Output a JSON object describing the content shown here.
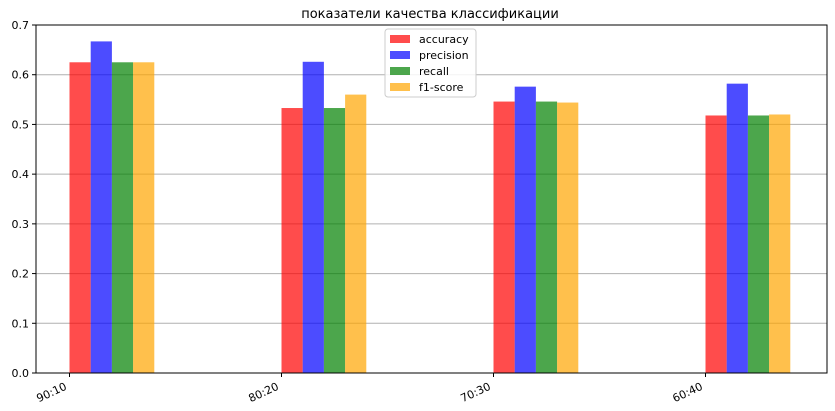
{
  "chart_data": {
    "type": "bar",
    "title": "показатели качества классификации",
    "xlabel": "",
    "ylabel": "",
    "categories": [
      "90:10",
      "80:20",
      "70:30",
      "60:40"
    ],
    "ylim": [
      0,
      0.7
    ],
    "yticks": [
      "0.0",
      "0.1",
      "0.2",
      "0.3",
      "0.4",
      "0.5",
      "0.6",
      "0.7"
    ],
    "grid": "horizontal",
    "legend_position": "top-center",
    "series": [
      {
        "name": "accuracy",
        "color": "#ff0000",
        "values": [
          0.625,
          0.533,
          0.546,
          0.518
        ]
      },
      {
        "name": "precision",
        "color": "#0000ff",
        "values": [
          0.667,
          0.626,
          0.576,
          0.582
        ]
      },
      {
        "name": "recall",
        "color": "#008000",
        "values": [
          0.625,
          0.533,
          0.546,
          0.518
        ]
      },
      {
        "name": "f1-score",
        "color": "#ffa500",
        "values": [
          0.625,
          0.56,
          0.544,
          0.52
        ]
      }
    ]
  }
}
